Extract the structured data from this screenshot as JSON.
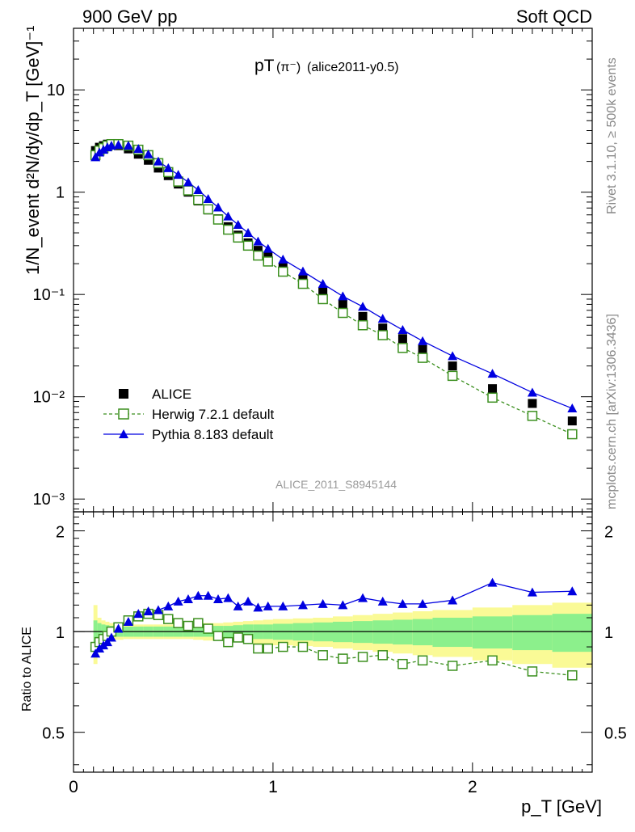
{
  "header": {
    "left": "900 GeV pp",
    "right": "Soft QCD"
  },
  "side_labels": {
    "rivet": "Rivet 3.1.10, ≥ 500k events",
    "mcplots": "mcplots.cern.ch [arXiv:1306.3436]"
  },
  "chart_data": [
    {
      "type": "scatter",
      "panel": "main",
      "title_main": "pT",
      "title_particle": "(π⁻)",
      "title_tag": "(alice2011-y0.5)",
      "ylabel": "1/N_event d²N/dy/dp_T [GeV]⁻¹",
      "yscale": "log",
      "ylim": [
        0.00075,
        40
      ],
      "xlim": [
        0,
        2.6
      ],
      "watermark": "ALICE_2011_S8945144",
      "y_tick_labels": [
        "10⁻³",
        "10⁻²",
        "10⁻¹",
        "1",
        "10"
      ],
      "legend": [
        "ALICE",
        "Herwig 7.2.1 default",
        "Pythia 8.183 default"
      ],
      "x": [
        0.11,
        0.13,
        0.15,
        0.17,
        0.19,
        0.225,
        0.275,
        0.325,
        0.375,
        0.425,
        0.475,
        0.525,
        0.575,
        0.625,
        0.675,
        0.725,
        0.775,
        0.825,
        0.875,
        0.925,
        0.975,
        1.05,
        1.15,
        1.25,
        1.35,
        1.45,
        1.55,
        1.65,
        1.75,
        1.9,
        2.1,
        2.3,
        2.5
      ],
      "series": [
        {
          "name": "ALICE",
          "values": [
            2.55,
            2.75,
            2.85,
            2.95,
            2.95,
            2.85,
            2.65,
            2.35,
            2.05,
            1.72,
            1.45,
            1.2,
            1.0,
            0.82,
            0.67,
            0.55,
            0.46,
            0.38,
            0.32,
            0.27,
            0.235,
            0.185,
            0.14,
            0.105,
            0.08,
            0.061,
            0.047,
            0.037,
            0.029,
            0.02,
            0.012,
            0.0086,
            0.0058
          ]
        },
        {
          "name": "Herwig 7.2.1 default",
          "values": [
            2.3,
            2.55,
            2.7,
            2.85,
            2.95,
            2.95,
            2.85,
            2.6,
            2.3,
            1.92,
            1.57,
            1.27,
            1.04,
            0.84,
            0.68,
            0.54,
            0.43,
            0.36,
            0.3,
            0.24,
            0.21,
            0.167,
            0.127,
            0.09,
            0.066,
            0.05,
            0.04,
            0.03,
            0.024,
            0.016,
            0.0098,
            0.0065,
            0.0043
          ]
        },
        {
          "name": "Pythia 8.183 default",
          "values": [
            2.2,
            2.45,
            2.6,
            2.75,
            2.85,
            2.9,
            2.85,
            2.65,
            2.35,
            2.0,
            1.72,
            1.48,
            1.25,
            1.05,
            0.86,
            0.71,
            0.58,
            0.48,
            0.4,
            0.33,
            0.28,
            0.22,
            0.168,
            0.127,
            0.096,
            0.076,
            0.058,
            0.045,
            0.035,
            0.025,
            0.0168,
            0.011,
            0.0077
          ]
        }
      ]
    },
    {
      "type": "line",
      "panel": "ratio",
      "ylabel": "Ratio to ALICE",
      "xlabel": "p_T [GeV]",
      "ylim": [
        0.38,
        2.28
      ],
      "xlim": [
        0,
        2.6
      ],
      "y_tick_labels": [
        "0.5",
        "1",
        "2"
      ],
      "x_tick_labels": [
        "0",
        "1",
        "2"
      ],
      "x": [
        0.11,
        0.13,
        0.15,
        0.17,
        0.19,
        0.225,
        0.275,
        0.325,
        0.375,
        0.425,
        0.475,
        0.525,
        0.575,
        0.625,
        0.675,
        0.725,
        0.775,
        0.825,
        0.875,
        0.925,
        0.975,
        1.05,
        1.15,
        1.25,
        1.35,
        1.45,
        1.55,
        1.65,
        1.75,
        1.9,
        2.1,
        2.3,
        2.5
      ],
      "series": [
        {
          "name": "Herwig 7.2.1 default",
          "values": [
            0.9,
            0.93,
            0.95,
            0.97,
            1.0,
            1.03,
            1.08,
            1.11,
            1.13,
            1.12,
            1.09,
            1.06,
            1.04,
            1.06,
            1.02,
            0.97,
            0.93,
            0.96,
            0.95,
            0.89,
            0.89,
            0.9,
            0.9,
            0.85,
            0.83,
            0.84,
            0.85,
            0.8,
            0.82,
            0.79,
            0.82,
            0.76,
            0.74
          ]
        },
        {
          "name": "Pythia 8.183 default",
          "values": [
            0.86,
            0.89,
            0.91,
            0.93,
            0.96,
            1.02,
            1.07,
            1.13,
            1.15,
            1.16,
            1.19,
            1.23,
            1.25,
            1.28,
            1.28,
            1.25,
            1.26,
            1.19,
            1.23,
            1.18,
            1.19,
            1.19,
            1.2,
            1.21,
            1.2,
            1.26,
            1.23,
            1.21,
            1.21,
            1.24,
            1.4,
            1.31,
            1.32
          ]
        }
      ],
      "bands": {
        "x_edges": [
          0.1,
          0.12,
          0.14,
          0.16,
          0.18,
          0.2,
          0.25,
          0.3,
          0.35,
          0.4,
          0.45,
          0.5,
          0.55,
          0.6,
          0.65,
          0.7,
          0.75,
          0.8,
          0.85,
          0.9,
          0.95,
          1.0,
          1.1,
          1.2,
          1.3,
          1.4,
          1.5,
          1.6,
          1.7,
          1.8,
          2.0,
          2.2,
          2.4,
          2.6
        ],
        "stat_half": [
          0.08,
          0.06,
          0.05,
          0.045,
          0.04,
          0.035,
          0.035,
          0.035,
          0.035,
          0.035,
          0.035,
          0.035,
          0.035,
          0.035,
          0.035,
          0.04,
          0.04,
          0.045,
          0.05,
          0.05,
          0.05,
          0.055,
          0.06,
          0.065,
          0.07,
          0.075,
          0.08,
          0.085,
          0.09,
          0.1,
          0.11,
          0.12,
          0.13
        ],
        "total_half": [
          0.2,
          0.1,
          0.08,
          0.07,
          0.06,
          0.055,
          0.05,
          0.05,
          0.05,
          0.05,
          0.05,
          0.05,
          0.05,
          0.055,
          0.06,
          0.06,
          0.065,
          0.07,
          0.075,
          0.08,
          0.085,
          0.09,
          0.095,
          0.1,
          0.11,
          0.12,
          0.13,
          0.14,
          0.15,
          0.16,
          0.18,
          0.2,
          0.22
        ]
      },
      "error_bars": {
        "index": [
          31,
          32
        ],
        "half": [
          0.035,
          0.035
        ]
      }
    }
  ],
  "colors": {
    "data": "#000000",
    "herwig": "#3b8f1e",
    "pythia": "#0000e0",
    "stat_band": "#8cf08c",
    "total_band": "#fafa96",
    "watermark": "#9a9a9a",
    "side_text": "#888888"
  }
}
